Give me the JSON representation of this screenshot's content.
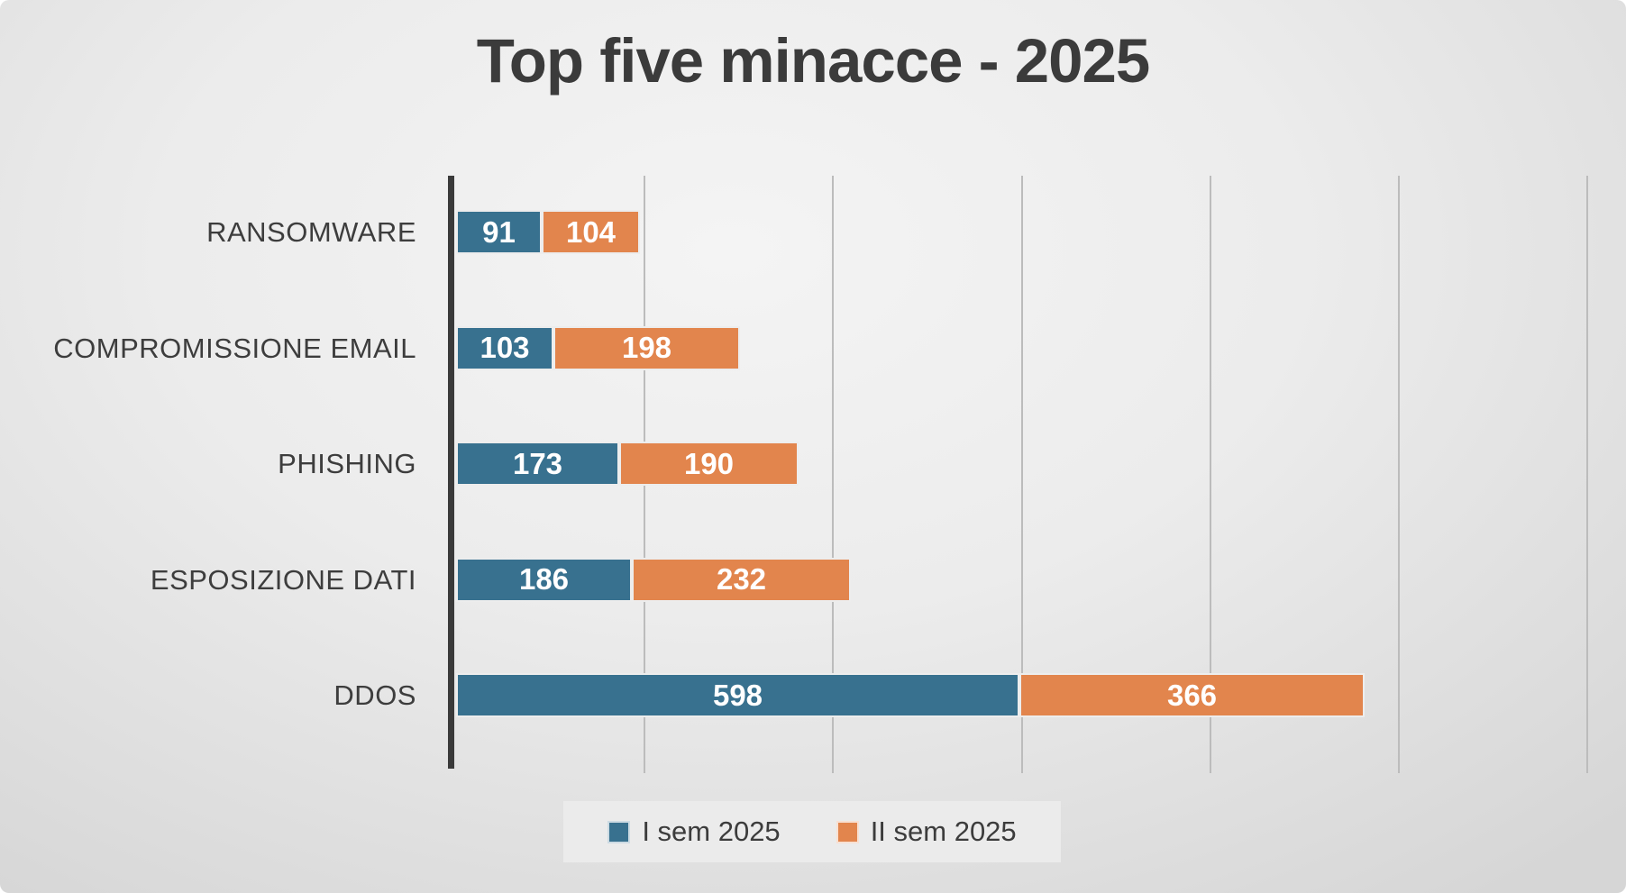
{
  "title": "Top five minacce - 2025",
  "chart_data": {
    "type": "bar",
    "orientation": "horizontal",
    "stacked": true,
    "title": "Top five minacce - 2025",
    "categories": [
      "RANSOMWARE",
      "COMPROMISSIONE EMAIL",
      "PHISHING",
      "ESPOSIZIONE DATI",
      "DDOS"
    ],
    "series": [
      {
        "name": "I sem 2025",
        "color": "#38718F",
        "values": [
          91,
          103,
          173,
          186,
          598
        ]
      },
      {
        "name": "II sem 2025",
        "color": "#E2854D",
        "values": [
          104,
          198,
          190,
          232,
          366
        ]
      }
    ],
    "xlim": [
      0,
      1200
    ],
    "gridline_step": 200,
    "grid": true,
    "legend_position": "bottom",
    "value_labels": "inside",
    "value_label_color": "#FFFFFF"
  },
  "colors": {
    "background_center": "#F4F4F4",
    "background_edge": "#D6D6D6",
    "title_text": "#3B3B3B",
    "category_text": "#3D3D3D",
    "axis_line": "#3A3A3A",
    "gridline": "#BCBCBC",
    "legend_background": "#EBEBEB",
    "sem1_blue": "#38718F",
    "sem2_orange": "#E2854D"
  }
}
